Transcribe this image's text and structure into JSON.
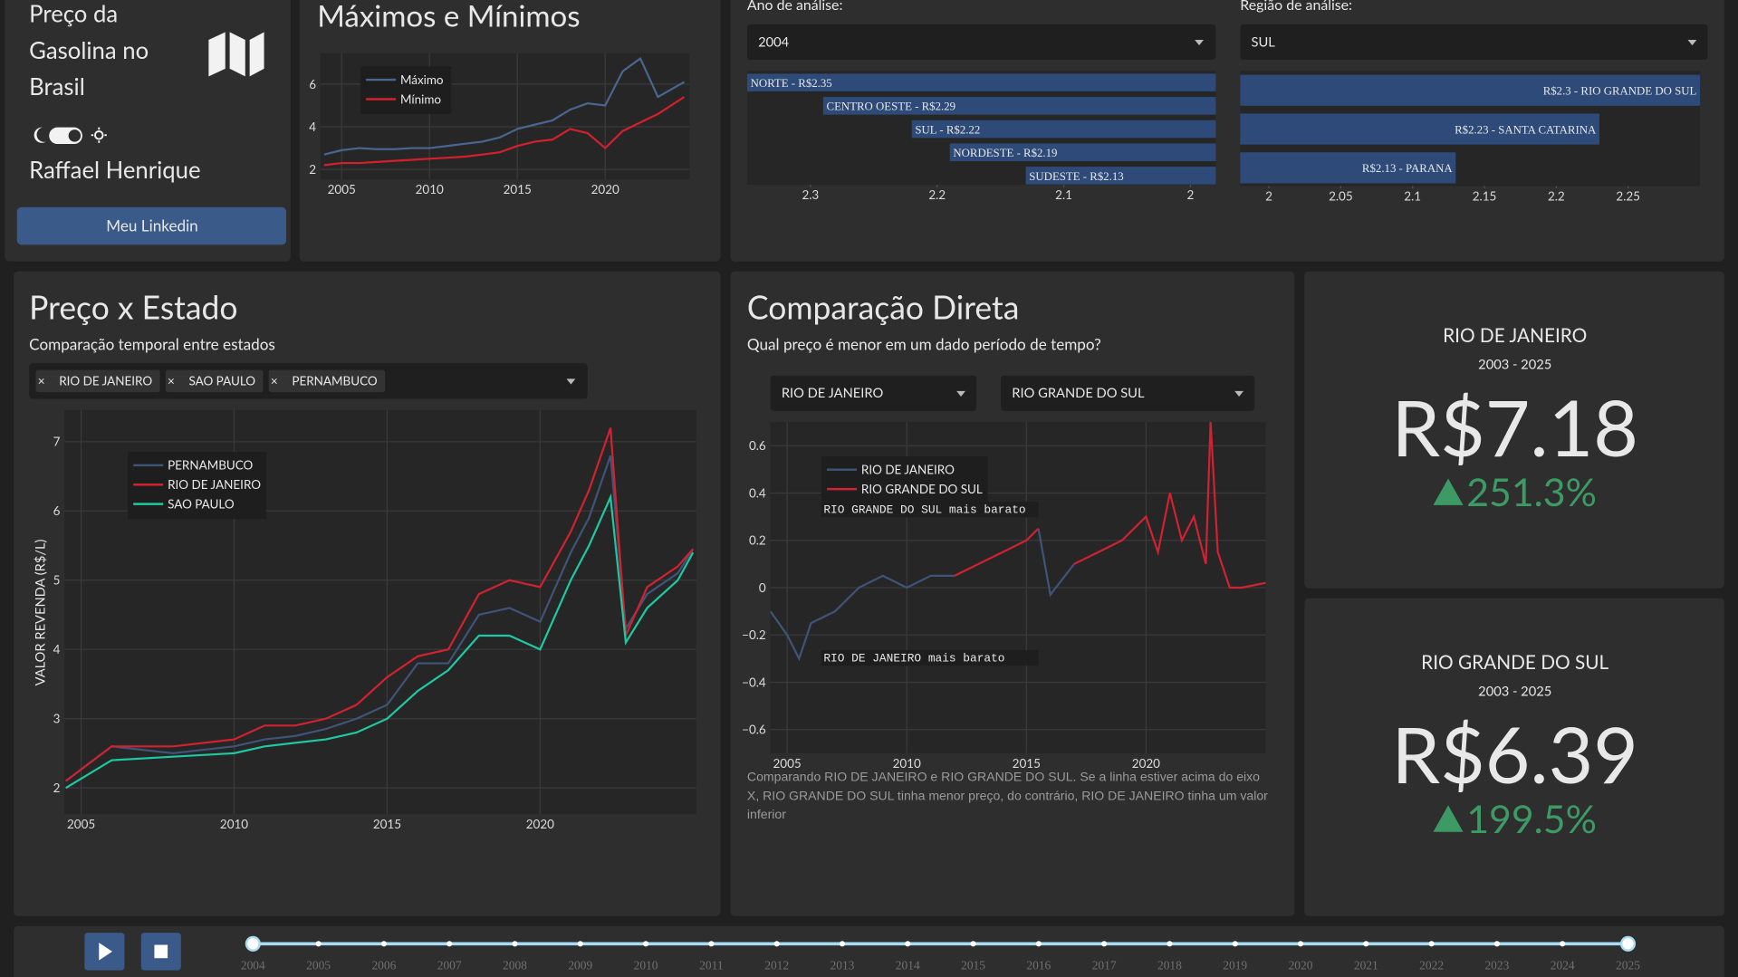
{
  "sidebar": {
    "title_lines": [
      "Preço da",
      "Gasolina no",
      "Brasil"
    ],
    "author": "Raffael Henrique",
    "button": "Meu Linkedin"
  },
  "filters": {
    "year_label": "Ano de análise:",
    "year": "2004",
    "region_label": "Região de análise:",
    "region": "SUL",
    "states": [
      "RIO DE JANEIRO",
      "SAO PAULO",
      "PERNAMBUCO"
    ],
    "compare": [
      "RIO DE JANEIRO",
      "RIO GRANDE DO SUL"
    ]
  },
  "chart_data": [
    {
      "type": "line",
      "title": "Máximos e Mínimos",
      "x": [
        2004,
        2005,
        2006,
        2007,
        2008,
        2009,
        2010,
        2011,
        2012,
        2013,
        2014,
        2015,
        2016,
        2017,
        2018,
        2019,
        2020,
        2021,
        2022,
        2023,
        2024.5
      ],
      "series": [
        {
          "name": "Máximo",
          "color": "#4a6690",
          "values": [
            2.7,
            2.9,
            3.0,
            2.95,
            2.95,
            3.0,
            3.0,
            3.1,
            3.2,
            3.3,
            3.5,
            3.9,
            4.1,
            4.3,
            4.8,
            5.1,
            5.0,
            6.6,
            7.2,
            5.4,
            6.1
          ]
        },
        {
          "name": "Mínimo",
          "color": "#d4202c",
          "values": [
            2.2,
            2.3,
            2.3,
            2.35,
            2.4,
            2.45,
            2.5,
            2.55,
            2.6,
            2.7,
            2.8,
            3.1,
            3.3,
            3.4,
            3.9,
            3.7,
            3.0,
            3.8,
            4.2,
            4.6,
            5.4
          ]
        }
      ],
      "xlim": [
        2003.8,
        2024.8
      ],
      "ylim": [
        1.53,
        7.45
      ],
      "xticks": [
        2005,
        2010,
        2015,
        2020
      ],
      "yticks": [
        2,
        4,
        6
      ],
      "grid": true
    },
    {
      "type": "hbar",
      "categories": [
        "NORTE - R$2.35",
        "CENTRO OESTE - R$2.29",
        "SUL - R$2.22",
        "NORDESTE - R$2.19",
        "SUDESTE - R$2.13"
      ],
      "values": [
        2.35,
        2.29,
        2.22,
        2.19,
        2.13
      ],
      "color": "#2d4a78",
      "xlim": [
        1.98,
        2.35
      ],
      "x_reversed": true,
      "xticks": [
        2.3,
        2.2,
        2.1,
        2
      ]
    },
    {
      "type": "hbar",
      "categories": [
        "R$2.3 - RIO GRANDE DO SUL",
        "R$2.23 - SANTA CATARINA",
        "R$2.13 - PARANA"
      ],
      "values": [
        2.3,
        2.23,
        2.13
      ],
      "color": "#2d4a78",
      "xlim": [
        1.98,
        2.3
      ],
      "x_reversed": false,
      "xticks": [
        2,
        2.05,
        2.1,
        2.15,
        2.2,
        2.25
      ]
    },
    {
      "type": "line",
      "title": "Preço x Estado",
      "subtitle": "Comparação temporal entre estados",
      "y_label": "VALOR REVENDA (R$/L)",
      "x": [
        2004.5,
        2006,
        2008,
        2010,
        2011,
        2012,
        2013,
        2014,
        2015,
        2016,
        2017,
        2018,
        2019,
        2020,
        2021,
        2021.6,
        2022.3,
        2022.8,
        2023.5,
        2024.5,
        2025
      ],
      "series": [
        {
          "name": "PERNAMBUCO",
          "color": "#3e5478",
          "values": [
            2.1,
            2.6,
            2.5,
            2.6,
            2.7,
            2.75,
            2.85,
            3.0,
            3.2,
            3.8,
            3.8,
            4.5,
            4.6,
            4.4,
            5.4,
            5.9,
            6.8,
            4.3,
            4.8,
            5.1,
            5.45
          ]
        },
        {
          "name": "RIO DE JANEIRO",
          "color": "#d02230",
          "values": [
            2.1,
            2.6,
            2.6,
            2.7,
            2.9,
            2.9,
            3.0,
            3.2,
            3.6,
            3.9,
            4.0,
            4.8,
            5.0,
            4.9,
            5.7,
            6.3,
            7.2,
            4.2,
            4.9,
            5.2,
            5.45
          ]
        },
        {
          "name": "SAO PAULO",
          "color": "#1fc8a2",
          "values": [
            2.0,
            2.4,
            2.45,
            2.5,
            2.6,
            2.65,
            2.7,
            2.8,
            3.0,
            3.4,
            3.7,
            4.2,
            4.2,
            4.0,
            5.0,
            5.5,
            6.2,
            4.1,
            4.6,
            5.0,
            5.4
          ]
        }
      ],
      "xlim": [
        2004.46,
        2025.1
      ],
      "ylim": [
        1.62,
        7.46
      ],
      "xticks": [
        2005,
        2010,
        2015,
        2020
      ],
      "yticks": [
        2,
        3,
        4,
        5,
        6,
        7
      ],
      "grid": true
    },
    {
      "type": "line",
      "title": "Comparação Direta",
      "subtitle": "Qual preço é menor em um dado período de tempo?",
      "annotations": [
        "RIO GRANDE DO SUL mais barato",
        "RIO DE JANEIRO mais barato"
      ],
      "x": [
        2004.3,
        2005,
        2005.5,
        2006,
        2007,
        2008,
        2009,
        2010,
        2011,
        2012,
        2013,
        2014,
        2015,
        2015.5,
        2016,
        2017,
        2018,
        2019,
        2020,
        2020.5,
        2021,
        2021.5,
        2022,
        2022.5,
        2022.7,
        2023,
        2023.5,
        2024,
        2025
      ],
      "series": [
        {
          "name": "RIO DE JANEIRO",
          "color": "#3e5478",
          "values": [
            -0.1,
            -0.2,
            -0.3,
            -0.15,
            -0.1,
            0.0,
            0.05,
            0.0,
            0.05,
            0.05,
            null,
            null,
            null,
            0.25,
            -0.03,
            0.1,
            null,
            null,
            null,
            null,
            null,
            null,
            null,
            null,
            null,
            null,
            null,
            null,
            null
          ]
        },
        {
          "name": "RIO GRANDE DO SUL",
          "color": "#d02230",
          "values": [
            null,
            null,
            null,
            null,
            null,
            null,
            null,
            null,
            null,
            0.05,
            0.1,
            0.15,
            0.2,
            0.25,
            null,
            0.1,
            0.15,
            0.2,
            0.3,
            0.15,
            0.4,
            0.2,
            0.3,
            0.1,
            0.7,
            0.15,
            0.0,
            0.0,
            0.02
          ]
        }
      ],
      "xlim": [
        2004.3,
        2025
      ],
      "ylim": [
        -0.7,
        0.7
      ],
      "xticks": [
        2005,
        2010,
        2015,
        2020
      ],
      "yticks": [
        {
          "value": -0.6,
          "label": "−0.6"
        },
        {
          "value": -0.4,
          "label": "−0.4"
        },
        {
          "value": -0.2,
          "label": "−0.2"
        },
        0,
        0.2,
        0.4,
        0.6
      ],
      "grid": true
    }
  ],
  "comparison_note": "Comparando RIO DE JANEIRO e RIO GRANDE DO SUL. Se a linha estiver acima do eixo X, RIO GRANDE DO SUL tinha menor preço, do contrário, RIO DE JANEIRO tinha um valor inferior",
  "cards": [
    {
      "state": "RIO DE JANEIRO",
      "period": "2003 - 2025",
      "price": "R$7.18",
      "change": "251.3%"
    },
    {
      "state": "RIO GRANDE DO SUL",
      "period": "2003 - 2025",
      "price": "R$6.39",
      "change": "199.5%"
    }
  ],
  "slider": {
    "years": [
      2004,
      2005,
      2006,
      2007,
      2008,
      2009,
      2010,
      2011,
      2012,
      2013,
      2014,
      2015,
      2016,
      2017,
      2018,
      2019,
      2020,
      2021,
      2022,
      2023,
      2024,
      2025
    ]
  }
}
